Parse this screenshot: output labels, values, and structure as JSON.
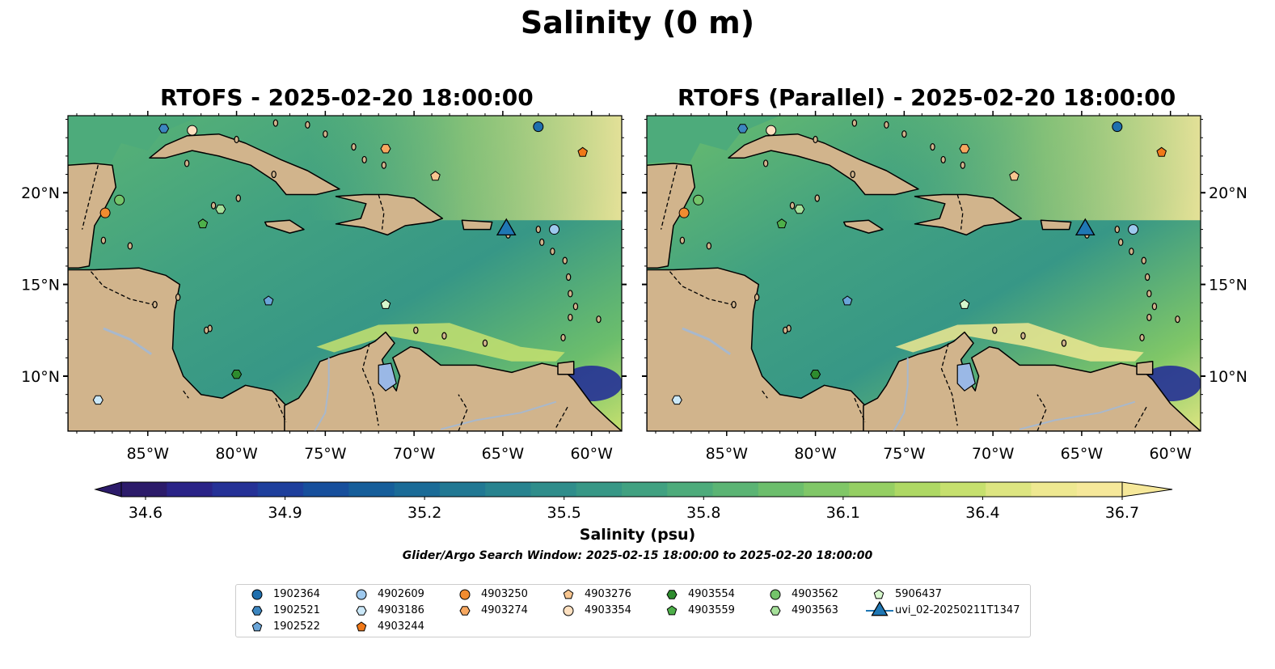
{
  "title": "Salinity (0 m)",
  "panels": [
    {
      "title": "RTOFS - 2025-02-20 18:00:00"
    },
    {
      "title": "RTOFS (Parallel) - 2025-02-20 18:00:00"
    }
  ],
  "map": {
    "lon_range": [
      -89.5,
      -58.3
    ],
    "lat_range": [
      7.0,
      24.2
    ],
    "lon_ticks": [
      "85°W",
      "80°W",
      "75°W",
      "70°W",
      "65°W",
      "60°W"
    ],
    "lat_ticks": [
      "10°N",
      "15°N",
      "20°N"
    ],
    "land_color": "#d1b48c",
    "deep_low_color": "#2a1c6a",
    "river_color": "#a8b8cc"
  },
  "colorbar": {
    "label": "Salinity (psu)",
    "min": 34.6,
    "max": 36.7,
    "tick_labels": [
      "34.6",
      "34.9",
      "35.2",
      "35.5",
      "35.8",
      "36.1",
      "36.4",
      "36.7"
    ],
    "colors": [
      "#2c1b6a",
      "#2a2387",
      "#253196",
      "#1e3f9c",
      "#174f9c",
      "#165e9a",
      "#1a6b97",
      "#217893",
      "#28838f",
      "#2f8d8b",
      "#379786",
      "#41a181",
      "#4dab7b",
      "#5bb474",
      "#6cbe6c",
      "#80c767",
      "#95cf63",
      "#aed864",
      "#c6e06e",
      "#dde581",
      "#eee891",
      "#f6e89a"
    ],
    "extend": "both"
  },
  "search_window": "Glider/Argo Search Window: 2025-02-15 18:00:00 to 2025-02-20 18:00:00",
  "legend": [
    {
      "label": "1902364",
      "marker": "circle",
      "color": "#1f6fae"
    },
    {
      "label": "1902521",
      "marker": "hexagon",
      "color": "#3c86c0"
    },
    {
      "label": "1902522",
      "marker": "pentagon",
      "color": "#6aa5d8"
    },
    {
      "label": "4902609",
      "marker": "circle",
      "color": "#9ec9ee"
    },
    {
      "label": "4903186",
      "marker": "hexagon",
      "color": "#cbe8f8"
    },
    {
      "label": "4903244",
      "marker": "pentagon",
      "color": "#f07818"
    },
    {
      "label": "4903250",
      "marker": "circle",
      "color": "#f28c30"
    },
    {
      "label": "4903274",
      "marker": "hexagon",
      "color": "#f7a860"
    },
    {
      "label": "4903276",
      "marker": "pentagon",
      "color": "#f8c690"
    },
    {
      "label": "4903354",
      "marker": "circle",
      "color": "#fde0c0"
    },
    {
      "label": "4903554",
      "marker": "hexagon",
      "color": "#2e8c2e"
    },
    {
      "label": "4903559",
      "marker": "pentagon",
      "color": "#4eb04a"
    },
    {
      "label": "4903562",
      "marker": "circle",
      "color": "#74c46a"
    },
    {
      "label": "4903563",
      "marker": "hexagon",
      "color": "#a6e09a"
    },
    {
      "label": "5906437",
      "marker": "pentagon",
      "color": "#d6f7cc"
    },
    {
      "label": "uvi_02-20250211T1347",
      "marker": "triangle",
      "color": "#1f77b4"
    }
  ],
  "platforms": [
    {
      "id": "1902364",
      "lon": -63.0,
      "lat": 23.6
    },
    {
      "id": "1902521",
      "lon": -84.1,
      "lat": 23.5
    },
    {
      "id": "1902522",
      "lon": -78.2,
      "lat": 14.1
    },
    {
      "id": "4902609",
      "lon": -62.1,
      "lat": 18.0
    },
    {
      "id": "4903186",
      "lon": -87.8,
      "lat": 8.7
    },
    {
      "id": "4903244",
      "lon": -60.5,
      "lat": 22.2
    },
    {
      "id": "4903250",
      "lon": -87.4,
      "lat": 18.9
    },
    {
      "id": "4903274",
      "lon": -71.6,
      "lat": 22.4
    },
    {
      "id": "4903276",
      "lon": -68.8,
      "lat": 20.9
    },
    {
      "id": "4903354",
      "lon": -82.5,
      "lat": 23.4
    },
    {
      "id": "4903554",
      "lon": -80.0,
      "lat": 10.1
    },
    {
      "id": "4903559",
      "lon": -81.9,
      "lat": 18.3
    },
    {
      "id": "4903562",
      "lon": -86.6,
      "lat": 19.6
    },
    {
      "id": "4903563",
      "lon": -80.9,
      "lat": 19.1
    },
    {
      "id": "5906437",
      "lon": -71.6,
      "lat": 13.9
    },
    {
      "id": "uvi_02-20250211T1347",
      "lon": -64.8,
      "lat": 18.1
    }
  ]
}
